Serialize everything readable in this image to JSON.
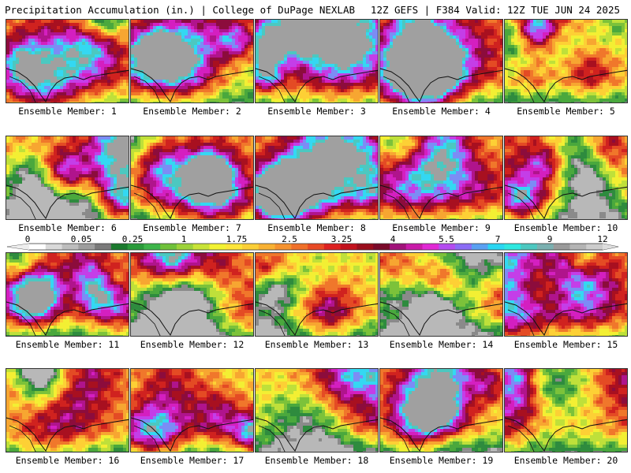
{
  "header": {
    "left": "Precipitation Accumulation (in.) | College of DuPage NEXLAB",
    "right": "12Z GEFS | F384 Valid: 12Z TUE JUN 24 2025"
  },
  "panels": [
    {
      "label": "Ensemble Member: 1",
      "seed": 11,
      "wet": 0.75
    },
    {
      "label": "Ensemble Member: 2",
      "seed": 23,
      "wet": 0.72
    },
    {
      "label": "Ensemble Member: 3",
      "seed": 37,
      "wet": 0.85
    },
    {
      "label": "Ensemble Member: 4",
      "seed": 41,
      "wet": 0.8
    },
    {
      "label": "Ensemble Member: 5",
      "seed": 53,
      "wet": 0.68
    },
    {
      "label": "Ensemble Member: 6",
      "seed": 61,
      "wet": 0.78
    },
    {
      "label": "Ensemble Member: 7",
      "seed": 71,
      "wet": 0.66
    },
    {
      "label": "Ensemble Member: 8",
      "seed": 83,
      "wet": 0.86
    },
    {
      "label": "Ensemble Member: 9",
      "seed": 97,
      "wet": 0.82
    },
    {
      "label": "Ensemble Member: 10",
      "seed": 101,
      "wet": 0.8
    },
    {
      "label": "Ensemble Member: 11",
      "seed": 113,
      "wet": 0.62
    },
    {
      "label": "Ensemble Member: 12",
      "seed": 127,
      "wet": 0.64
    },
    {
      "label": "Ensemble Member: 13",
      "seed": 131,
      "wet": 0.58
    },
    {
      "label": "Ensemble Member: 14",
      "seed": 149,
      "wet": 0.52
    },
    {
      "label": "Ensemble Member: 15",
      "seed": 157,
      "wet": 0.8
    },
    {
      "label": "Ensemble Member: 16",
      "seed": 163,
      "wet": 0.7
    },
    {
      "label": "Ensemble Member: 17",
      "seed": 173,
      "wet": 0.66
    },
    {
      "label": "Ensemble Member: 18",
      "seed": 181,
      "wet": 0.72
    },
    {
      "label": "Ensemble Member: 19",
      "seed": 191,
      "wet": 0.55
    },
    {
      "label": "Ensemble Member: 20",
      "seed": 199,
      "wet": 0.7
    }
  ],
  "colorbar": {
    "tick_labels": [
      "0",
      "0.05",
      "0.25",
      "1",
      "1.75",
      "2.5",
      "3.25",
      "4",
      "5.5",
      "7",
      "9",
      "12"
    ],
    "colors": [
      "#ffffff",
      "#d9d9d9",
      "#bdbdbd",
      "#9e9e9e",
      "#7a7a7a",
      "#1b7a2e",
      "#2a9a3a",
      "#3db54a",
      "#6fc13a",
      "#9dd23a",
      "#c8e337",
      "#f2f232",
      "#fde53a",
      "#fbcf37",
      "#f8b133",
      "#f5922f",
      "#f0702a",
      "#e84a25",
      "#dd2121",
      "#c2121d",
      "#9a0d1c",
      "#7a0a2a",
      "#a0127a",
      "#c81aa8",
      "#e028d4",
      "#b44cf0",
      "#8a6cf5",
      "#5aa0f2",
      "#2ad6f2",
      "#2ee8e0",
      "#4cc8c0",
      "#7ab0b0",
      "#9a9a9a",
      "#b4b4b4",
      "#cccccc"
    ]
  }
}
